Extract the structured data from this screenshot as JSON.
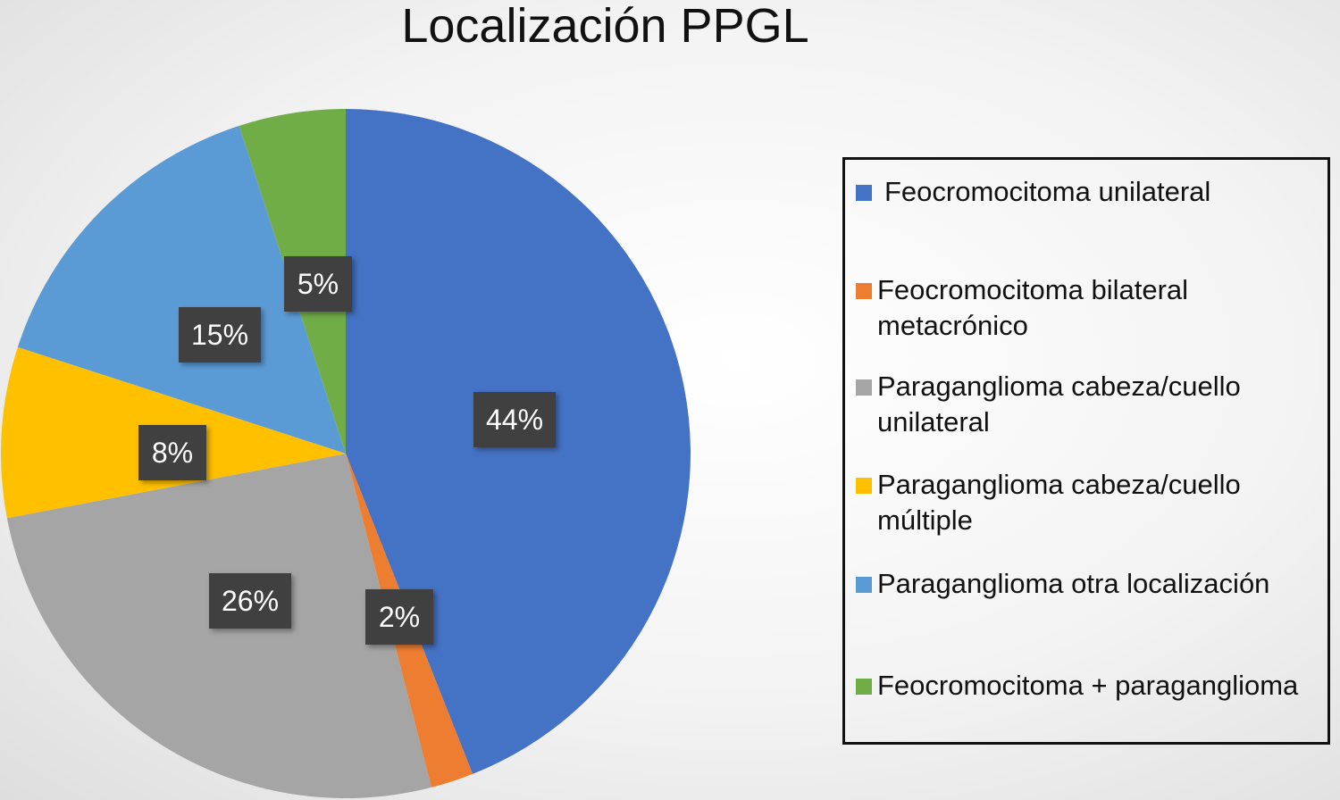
{
  "chart_data": {
    "type": "pie",
    "title": "Localización PPGL",
    "slices": [
      {
        "label": "Feocromocitoma unilateral",
        "value": 44,
        "display": "44%",
        "color": "#4472c4"
      },
      {
        "label": "Feocromocitoma bilateral metacrónico",
        "value": 2,
        "display": "2%",
        "color": "#ed7d31"
      },
      {
        "label": "Paraganglioma cabeza/cuello unilateral",
        "value": 26,
        "display": "26%",
        "color": "#a5a5a5"
      },
      {
        "label": "Paraganglioma cabeza/cuello múltiple",
        "value": 8,
        "display": "8%",
        "color": "#ffc000"
      },
      {
        "label": "Paraganglioma otra localización",
        "value": 15,
        "display": "15%",
        "color": "#5b9bd5"
      },
      {
        "label": "Feocromocitoma + paraganglioma",
        "value": 5,
        "display": "5%",
        "color": "#70ad47"
      }
    ],
    "legend": {
      "position": "right"
    }
  }
}
